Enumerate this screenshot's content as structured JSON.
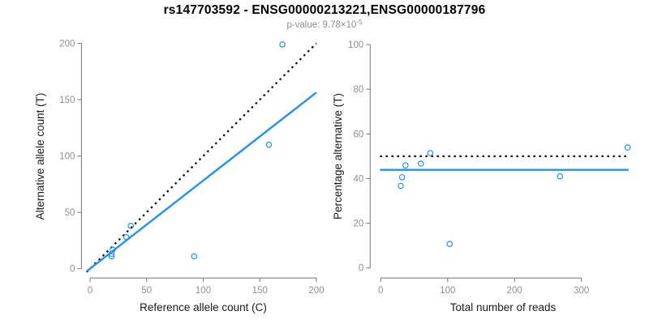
{
  "header": {
    "title": "rs147703592 - ENSG00000213221,ENSG00000187796",
    "pvalue_prefix": "p-value: 9.78×10",
    "pvalue_exponent": "-5"
  },
  "colors": {
    "accent_blue": "#1E90FF",
    "dotted_black": "#000000",
    "axis_line": "#808080",
    "tick_label": "#8E8E8E",
    "axis_title": "#1A1A1A",
    "title_text": "#000000",
    "subtitle_text": "#8E8E8E",
    "background": "#FFFFFF"
  },
  "chart_data": [
    {
      "type": "scatter",
      "title": "",
      "xlabel": "Reference allele count (C)",
      "ylabel": "Alternative allele count (T)",
      "xlim": [
        0,
        200
      ],
      "ylim": [
        0,
        200
      ],
      "xticks": [
        0,
        50,
        100,
        150,
        200
      ],
      "yticks": [
        0,
        50,
        100,
        150,
        200
      ],
      "grid": false,
      "legend": null,
      "points": [
        [
          20,
          17
        ],
        [
          19,
          13
        ],
        [
          19,
          11
        ],
        [
          32,
          28
        ],
        [
          36,
          38
        ],
        [
          92,
          11
        ],
        [
          158,
          110
        ],
        [
          170,
          199
        ]
      ],
      "lines": [
        {
          "name": "identity-line",
          "style": "dotted",
          "color": "#000000",
          "slope": 1,
          "intercept": 0
        },
        {
          "name": "regression-line",
          "style": "solid",
          "color": "#1E90FF",
          "slope": 0.782,
          "intercept": 0
        }
      ]
    },
    {
      "type": "scatter",
      "title": "",
      "xlabel": "Total number of reads",
      "ylabel": "Percentage alternative (T)",
      "xlim": [
        0,
        370
      ],
      "ylim": [
        0,
        100
      ],
      "xticks": [
        0,
        100,
        200,
        300
      ],
      "yticks": [
        0,
        20,
        40,
        60,
        80,
        100
      ],
      "grid": false,
      "legend": null,
      "points": [
        [
          37,
          45.9
        ],
        [
          32,
          40.6
        ],
        [
          30,
          36.7
        ],
        [
          60,
          46.7
        ],
        [
          74,
          51.4
        ],
        [
          103,
          10.7
        ],
        [
          268,
          41
        ],
        [
          369,
          53.9
        ]
      ],
      "lines": [
        {
          "name": "fifty-percent-line",
          "style": "dotted",
          "color": "#000000",
          "y": 50
        },
        {
          "name": "mean-alt-fraction-line",
          "style": "solid",
          "color": "#1E90FF",
          "y": 43.9
        }
      ]
    }
  ]
}
